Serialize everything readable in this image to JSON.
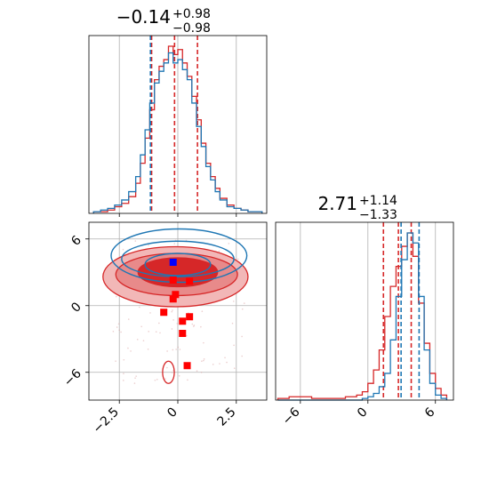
{
  "colors": {
    "red": "#d62728",
    "blue": "#1f77b4",
    "red_fill_light": "#f2b7b7",
    "red_fill_mid": "#e88a8a",
    "red_fill_dark": "#d62728",
    "grid": "#b0b0b0"
  },
  "chart_data": [
    {
      "type": "histogram",
      "panel": "top-left",
      "title": {
        "main": "−0.14",
        "sup": "+0.98",
        "sub": "−0.98"
      },
      "xlim": [
        -3.8,
        3.8
      ],
      "xticks": [
        -2.5,
        0.0,
        2.5
      ],
      "grid": true,
      "series": [
        {
          "color": "red",
          "quantiles": [
            -1.12,
            -0.14,
            0.84
          ],
          "bins": [
            -3.6,
            -3.3,
            -3.0,
            -2.7,
            -2.4,
            -2.1,
            -1.8,
            -1.6,
            -1.4,
            -1.2,
            -1.0,
            -0.8,
            -0.6,
            -0.4,
            -0.2,
            0.0,
            0.2,
            0.4,
            0.6,
            0.8,
            1.0,
            1.2,
            1.4,
            1.6,
            1.8,
            2.1,
            2.4,
            2.7,
            3.0,
            3.3,
            3.6
          ],
          "heights": [
            0.01,
            0.01,
            0.02,
            0.04,
            0.06,
            0.1,
            0.18,
            0.3,
            0.45,
            0.62,
            0.8,
            0.88,
            0.92,
            1.0,
            0.95,
            0.98,
            0.9,
            0.82,
            0.7,
            0.56,
            0.42,
            0.3,
            0.22,
            0.15,
            0.09,
            0.05,
            0.03,
            0.02,
            0.01,
            0.01
          ]
        },
        {
          "color": "blue",
          "quantiles": [
            -1.17
          ],
          "bins": [
            -3.6,
            -3.3,
            -3.0,
            -2.7,
            -2.4,
            -2.1,
            -1.8,
            -1.6,
            -1.4,
            -1.2,
            -1.0,
            -0.8,
            -0.6,
            -0.4,
            -0.2,
            0.0,
            0.2,
            0.4,
            0.6,
            0.8,
            1.0,
            1.2,
            1.4,
            1.6,
            1.8,
            2.1,
            2.4,
            2.7,
            3.0,
            3.3,
            3.6
          ],
          "heights": [
            0.01,
            0.02,
            0.03,
            0.05,
            0.08,
            0.13,
            0.22,
            0.35,
            0.5,
            0.66,
            0.78,
            0.85,
            0.9,
            0.96,
            0.9,
            0.92,
            0.86,
            0.8,
            0.66,
            0.52,
            0.4,
            0.28,
            0.2,
            0.13,
            0.08,
            0.04,
            0.03,
            0.02,
            0.01,
            0.01
          ]
        }
      ]
    },
    {
      "type": "histogram",
      "panel": "bottom-right",
      "title": {
        "main": "2.71",
        "sup": "+1.14",
        "sub": "−1.33"
      },
      "xlim": [
        -8.2,
        7.6
      ],
      "xticks": [
        -6,
        0,
        6
      ],
      "grid": true,
      "series": [
        {
          "color": "red",
          "quantiles": [
            1.38,
            2.71,
            3.85
          ],
          "bins": [
            -8,
            -7,
            -6,
            -5,
            -4,
            -3,
            -2,
            -1,
            -0.5,
            0,
            0.5,
            1.0,
            1.5,
            2.0,
            2.5,
            3.0,
            3.5,
            4.0,
            4.5,
            5.0,
            5.5,
            6.0,
            6.5,
            7.0
          ],
          "heights": [
            0.01,
            0.02,
            0.02,
            0.01,
            0.01,
            0.01,
            0.02,
            0.03,
            0.05,
            0.1,
            0.18,
            0.3,
            0.5,
            0.68,
            0.8,
            0.92,
            1.0,
            0.86,
            0.58,
            0.34,
            0.16,
            0.07,
            0.03
          ]
        },
        {
          "color": "blue",
          "quantiles": [
            2.95,
            4.55
          ],
          "bins": [
            -8,
            -7,
            -6,
            -5,
            -4,
            -3,
            -2,
            -1,
            -0.5,
            0,
            0.5,
            1.0,
            1.5,
            2.0,
            2.5,
            3.0,
            3.5,
            4.0,
            4.5,
            5.0,
            5.5,
            6.0,
            6.5,
            7.0
          ],
          "heights": [
            0,
            0,
            0,
            0,
            0,
            0,
            0,
            0,
            0.01,
            0.02,
            0.04,
            0.08,
            0.16,
            0.36,
            0.62,
            0.84,
            1.0,
            0.94,
            0.62,
            0.3,
            0.1,
            0.03,
            0.01
          ]
        }
      ]
    },
    {
      "type": "contour",
      "panel": "bottom-left",
      "xlim": [
        -3.8,
        3.8
      ],
      "ylim": [
        -8.5,
        7.5
      ],
      "xticks": [
        -2.5,
        0.0,
        2.5
      ],
      "yticks": [
        -6,
        0,
        6
      ],
      "grid": true,
      "red_contours": [
        {
          "level": "outer",
          "cx": -0.1,
          "cy": 2.6,
          "rx": 3.1,
          "ry": 2.7
        },
        {
          "level": "middle",
          "cx": -0.05,
          "cy": 2.8,
          "rx": 2.6,
          "ry": 1.9
        },
        {
          "level": "inner",
          "cx": 0.0,
          "cy": 3.0,
          "rx": 1.7,
          "ry": 1.3
        }
      ],
      "red_tail": [
        {
          "cx": -0.4,
          "cy": -6.0,
          "rx": 0.25,
          "ry": 1.0
        }
      ],
      "blue_contours": [
        {
          "level": "outer",
          "cx": 0.05,
          "cy": 4.5,
          "rx": 2.9,
          "ry": 2.4
        },
        {
          "level": "middle",
          "cx": 0.0,
          "cy": 4.2,
          "rx": 2.4,
          "ry": 1.6
        },
        {
          "level": "inner",
          "cx": 0.0,
          "cy": 3.7,
          "rx": 1.4,
          "ry": 1.0
        }
      ],
      "blue_points": [
        {
          "x": -0.2,
          "y": 3.9
        }
      ],
      "red_points": [
        {
          "x": -0.2,
          "y": 2.3
        },
        {
          "x": 0.5,
          "y": 2.2
        },
        {
          "x": -0.1,
          "y": 1.0
        },
        {
          "x": -0.2,
          "y": 0.6
        },
        {
          "x": -0.6,
          "y": -0.6
        },
        {
          "x": 0.5,
          "y": -1.0
        },
        {
          "x": 0.2,
          "y": -1.4
        },
        {
          "x": 0.2,
          "y": -2.5
        },
        {
          "x": 0.4,
          "y": -5.4
        }
      ]
    }
  ]
}
